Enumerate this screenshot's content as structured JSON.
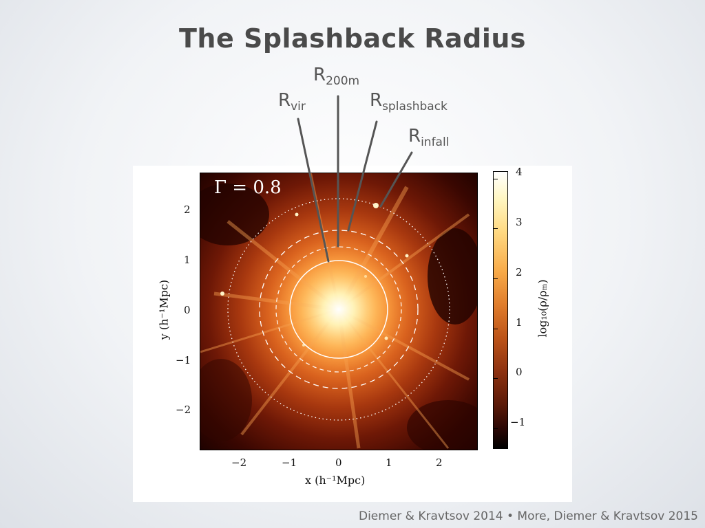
{
  "slide": {
    "title": "The Splashback Radius",
    "footer": "Diemer & Kravtsov 2014 • More, Diemer & Kravtsov 2015"
  },
  "labels": {
    "r200m": {
      "main": "R",
      "sub": "200m"
    },
    "rvir": {
      "main": "R",
      "sub": "vir"
    },
    "rsplash": {
      "main": "R",
      "sub": "splashback"
    },
    "rinfall": {
      "main": "R",
      "sub": "infall"
    }
  },
  "figure": {
    "annotation": "Γ = 0.8",
    "xlabel": "x (h⁻¹Mpc)",
    "ylabel": "y (h⁻¹Mpc)",
    "colorbar_label": "log₁₀(ρ/ρₘ)",
    "x_ticks": [
      "−2",
      "−1",
      "0",
      "1",
      "2"
    ],
    "y_ticks": [
      "2",
      "1",
      "0",
      "−1",
      "−2"
    ],
    "colorbar_ticks": [
      "4",
      "3",
      "2",
      "1",
      "0",
      "−1"
    ],
    "colors": {
      "line": "#555555",
      "circle": "#ffffff"
    }
  }
}
